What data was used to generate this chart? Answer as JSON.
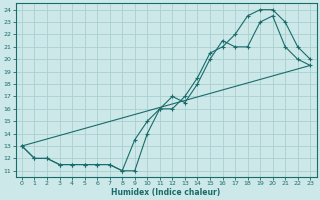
{
  "title": "",
  "xlabel": "Humidex (Indice chaleur)",
  "ylabel": "",
  "bg_color": "#cce8e8",
  "line_color": "#1a6b6b",
  "grid_color": "#aacfcf",
  "xlim": [
    -0.5,
    23.5
  ],
  "ylim": [
    10.5,
    24.5
  ],
  "xticks": [
    0,
    1,
    2,
    3,
    4,
    5,
    6,
    7,
    8,
    9,
    10,
    11,
    12,
    13,
    14,
    15,
    16,
    17,
    18,
    19,
    20,
    21,
    22,
    23
  ],
  "yticks": [
    11,
    12,
    13,
    14,
    15,
    16,
    17,
    18,
    19,
    20,
    21,
    22,
    23,
    24
  ],
  "line1_x": [
    0,
    1,
    2,
    3,
    4,
    5,
    6,
    7,
    8,
    9,
    10,
    11,
    12,
    13,
    14,
    15,
    16,
    17,
    18,
    19,
    20,
    21,
    22,
    23
  ],
  "line1_y": [
    13,
    12,
    12,
    11.5,
    11.5,
    11.5,
    11.5,
    11.5,
    11,
    11,
    14,
    16,
    17,
    16.5,
    18,
    20,
    21.5,
    21,
    21,
    23,
    23.5,
    21,
    20,
    19.5
  ],
  "line2_x": [
    0,
    1,
    2,
    3,
    4,
    5,
    6,
    7,
    8,
    9,
    10,
    11,
    12,
    13,
    14,
    15,
    16,
    17,
    18,
    19,
    20,
    21,
    22,
    23
  ],
  "line2_y": [
    13,
    12,
    12,
    11.5,
    11.5,
    11.5,
    11.5,
    11.5,
    11,
    13.5,
    15,
    16,
    16,
    17,
    18.5,
    20.5,
    21,
    22,
    23.5,
    24,
    24,
    23,
    21,
    20
  ],
  "line3_x": [
    0,
    23
  ],
  "line3_y": [
    13,
    19.5
  ]
}
